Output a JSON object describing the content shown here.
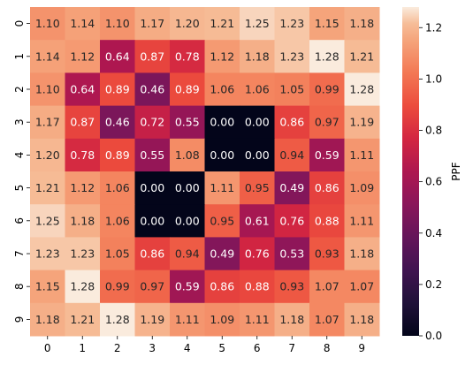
{
  "chart_data": {
    "type": "heatmap",
    "x_ticks": [
      "0",
      "1",
      "2",
      "3",
      "4",
      "5",
      "6",
      "7",
      "8",
      "9"
    ],
    "y_ticks": [
      "0",
      "1",
      "2",
      "3",
      "4",
      "5",
      "6",
      "7",
      "8",
      "9"
    ],
    "values": [
      [
        1.1,
        1.14,
        1.1,
        1.17,
        1.2,
        1.21,
        1.25,
        1.23,
        1.15,
        1.18
      ],
      [
        1.14,
        1.12,
        0.64,
        0.87,
        0.78,
        1.12,
        1.18,
        1.23,
        1.28,
        1.21
      ],
      [
        1.1,
        0.64,
        0.89,
        0.46,
        0.89,
        1.06,
        1.06,
        1.05,
        0.99,
        1.28
      ],
      [
        1.17,
        0.87,
        0.46,
        0.72,
        0.55,
        0.0,
        0.0,
        0.86,
        0.97,
        1.19
      ],
      [
        1.2,
        0.78,
        0.89,
        0.55,
        1.08,
        0.0,
        0.0,
        0.94,
        0.59,
        1.11
      ],
      [
        1.21,
        1.12,
        1.06,
        0.0,
        0.0,
        1.11,
        0.95,
        0.49,
        0.86,
        1.09
      ],
      [
        1.25,
        1.18,
        1.06,
        0.0,
        0.0,
        0.95,
        0.61,
        0.76,
        0.88,
        1.11
      ],
      [
        1.23,
        1.23,
        1.05,
        0.86,
        0.94,
        0.49,
        0.76,
        0.53,
        0.93,
        1.18
      ],
      [
        1.15,
        1.28,
        0.99,
        0.97,
        0.59,
        0.86,
        0.88,
        0.93,
        1.07,
        1.07
      ],
      [
        1.18,
        1.21,
        1.28,
        1.19,
        1.11,
        1.09,
        1.11,
        1.18,
        1.07,
        1.18
      ]
    ],
    "value_format": "0.00",
    "colorbar": {
      "label": "PPF",
      "ticks": [
        "0.0",
        "0.2",
        "0.4",
        "0.6",
        "0.8",
        "1.0",
        "1.2"
      ],
      "tick_values": [
        0.0,
        0.2,
        0.4,
        0.6,
        0.8,
        1.0,
        1.2
      ],
      "range": [
        0.0,
        1.28
      ],
      "colormap": "rocket"
    }
  }
}
